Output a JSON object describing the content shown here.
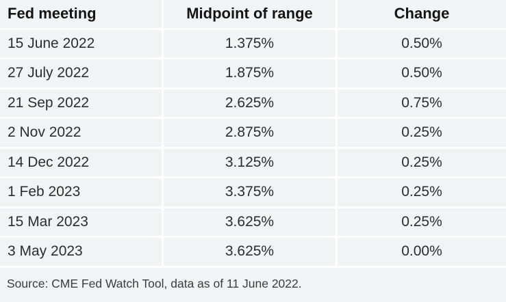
{
  "chart_data": {
    "type": "table",
    "columns": [
      "Fed meeting",
      "Midpoint of range",
      "Change"
    ],
    "rows": [
      [
        "15 June 2022",
        "1.375%",
        "0.50%"
      ],
      [
        "27 July 2022",
        "1.875%",
        "0.50%"
      ],
      [
        "21 Sep 2022",
        "2.625%",
        "0.75%"
      ],
      [
        "2 Nov 2022",
        "2.875%",
        "0.25%"
      ],
      [
        "14 Dec 2022",
        "3.125%",
        "0.25%"
      ],
      [
        "1 Feb 2023",
        "3.375%",
        "0.25%"
      ],
      [
        "15 Mar 2023",
        "3.625%",
        "0.25%"
      ],
      [
        "3 May 2023",
        "3.625%",
        "0.00%"
      ]
    ],
    "source": "Source: CME Fed Watch Tool, data as of 11 June 2022.",
    "layout": {
      "grid": "white separators between cells",
      "header_align": [
        "left",
        "center",
        "center"
      ],
      "body_align": [
        "left",
        "center",
        "center"
      ]
    },
    "colors": {
      "cell_background": "#f2f3f4",
      "separator": "#ffffff",
      "header_text": "#141414",
      "body_text": "#2b2d31",
      "source_text": "#3a3c40"
    }
  }
}
